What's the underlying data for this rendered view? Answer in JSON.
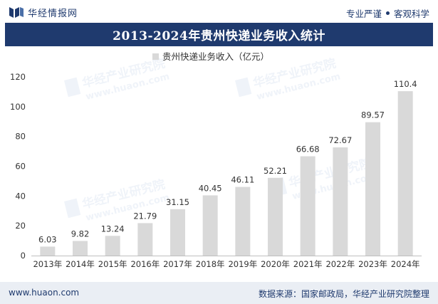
{
  "header": {
    "brand_name": "华经情报网",
    "slogan_left": "专业严谨",
    "slogan_right": "客观科学"
  },
  "title_bar": {
    "title": "2013-2024年贵州快递业务收入统计"
  },
  "colors": {
    "brand": "#1f3a6e",
    "bar": "#d9d9d9",
    "footer_bg": "#eaeef4"
  },
  "footer": {
    "url": "www.huaon.com",
    "source": "数据来源：国家邮政局，华经产业研究院整理"
  },
  "chart_data": {
    "type": "bar",
    "title": "",
    "xlabel": "",
    "ylabel": "",
    "legend_position": "top",
    "grid": false,
    "categories": [
      "2013年",
      "2014年",
      "2015年",
      "2016年",
      "2017年",
      "2018年",
      "2019年",
      "2020年",
      "2021年",
      "2022年",
      "2023年",
      "2024年"
    ],
    "series": [
      {
        "name": "贵州快递业务收入（亿元）",
        "values": [
          6.03,
          9.82,
          13.24,
          21.79,
          31.15,
          40.45,
          46.11,
          52.21,
          66.68,
          72.67,
          89.57,
          110.4
        ],
        "labels": [
          "6.03",
          "9.82",
          "13.24",
          "21.79",
          "31.15",
          "40.45",
          "46.11",
          "52.21",
          "66.68",
          "72.67",
          "89.57",
          "110.4"
        ]
      }
    ],
    "ylim": [
      0,
      120
    ],
    "yticks": [
      0,
      20,
      40,
      60,
      80,
      100,
      120
    ]
  }
}
